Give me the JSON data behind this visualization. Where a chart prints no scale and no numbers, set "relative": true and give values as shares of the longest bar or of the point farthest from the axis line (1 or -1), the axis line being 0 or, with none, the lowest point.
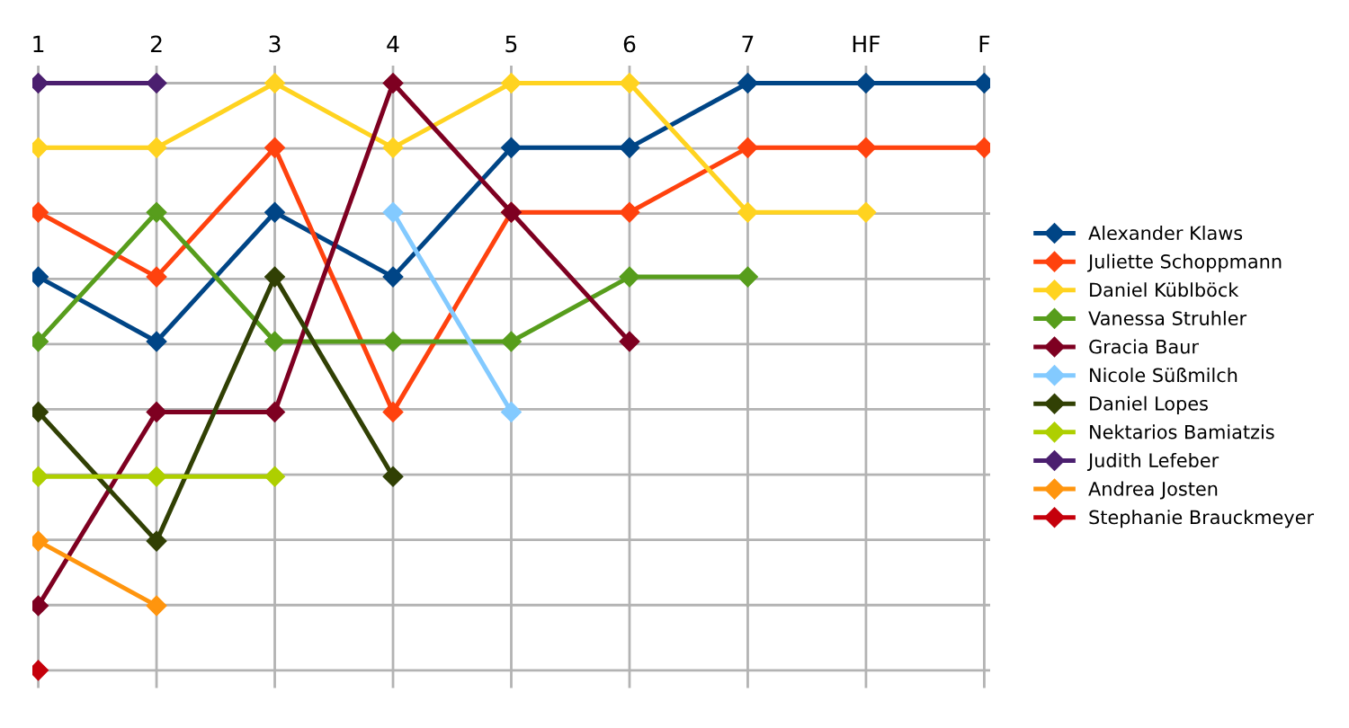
{
  "chart_data": {
    "type": "line",
    "relative": true,
    "categories": [
      "1",
      "2",
      "3",
      "4",
      "5",
      "6",
      "7",
      "HF",
      "F"
    ],
    "grid": true,
    "legend": "right",
    "marker": "diamond",
    "line_style": "solid",
    "tick_labels": "x",
    "series": [
      {
        "name": "Alexander Klaws",
        "color": "#004586",
        "values": [
          0.67,
          0.56,
          0.78,
          0.67,
          0.89,
          0.89,
          1,
          1,
          1
        ]
      },
      {
        "name": "Juliette Schoppmann",
        "color": "#ff420e",
        "values": [
          0.78,
          0.67,
          0.89,
          0.44,
          0.78,
          0.78,
          0.89,
          0.89,
          0.89
        ]
      },
      {
        "name": "Daniel Küblböck",
        "color": "#ffd320",
        "values": [
          0.89,
          0.89,
          1,
          0.89,
          1,
          1,
          0.78,
          0.78,
          null
        ]
      },
      {
        "name": "Vanessa Struhler",
        "color": "#579d1c",
        "values": [
          0.56,
          0.78,
          0.56,
          0.56,
          0.56,
          0.67,
          0.67,
          null,
          null
        ]
      },
      {
        "name": "Gracia Baur",
        "color": "#7e0021",
        "values": [
          0.11,
          0.44,
          0.44,
          1,
          0.78,
          0.56,
          null,
          null,
          null
        ]
      },
      {
        "name": "Nicole Süßmilch",
        "color": "#83caff",
        "values": [
          null,
          null,
          null,
          0.78,
          0.44,
          null,
          null,
          null,
          null
        ]
      },
      {
        "name": "Daniel Lopes",
        "color": "#314004",
        "values": [
          0.44,
          0.22,
          0.67,
          0.33,
          null,
          null,
          null,
          null,
          null
        ]
      },
      {
        "name": "Nektarios Bamiatzis",
        "color": "#aecf00",
        "values": [
          0.33,
          0.33,
          0.33,
          null,
          null,
          null,
          null,
          null,
          null
        ]
      },
      {
        "name": "Judith Lefeber",
        "color": "#4b1f6f",
        "values": [
          1,
          1,
          null,
          null,
          null,
          null,
          null,
          null,
          null
        ]
      },
      {
        "name": "Andrea Josten",
        "color": "#ff950e",
        "values": [
          0.22,
          0.11,
          null,
          null,
          null,
          null,
          null,
          null,
          null
        ]
      },
      {
        "name": "Stephanie Brauckmeyer",
        "color": "#c5000b",
        "values": [
          0,
          null,
          null,
          null,
          null,
          null,
          null,
          null,
          null
        ]
      }
    ]
  }
}
